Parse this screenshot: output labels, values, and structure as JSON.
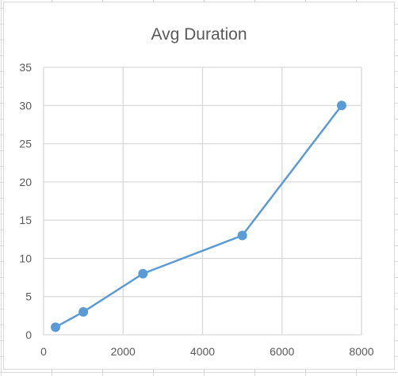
{
  "colors": {
    "series": "#5b9bd5",
    "grid": "#d9d9d9",
    "text": "#595959",
    "sheet_grid": "#d9d9d9"
  },
  "chart_data": {
    "type": "scatter",
    "title": "Avg Duration",
    "xlabel": "",
    "ylabel": "",
    "xlim": [
      0,
      8000
    ],
    "ylim": [
      0,
      35
    ],
    "x_ticks": [
      0,
      2000,
      4000,
      6000,
      8000
    ],
    "y_ticks": [
      0,
      5,
      10,
      15,
      20,
      25,
      30,
      35
    ],
    "grid": true,
    "legend": "none",
    "series": [
      {
        "lines": true,
        "markers": true,
        "points": [
          {
            "x": 300,
            "y": 1
          },
          {
            "x": 1000,
            "y": 3
          },
          {
            "x": 2500,
            "y": 8
          },
          {
            "x": 5000,
            "y": 13
          },
          {
            "x": 7500,
            "y": 30
          }
        ]
      }
    ]
  }
}
